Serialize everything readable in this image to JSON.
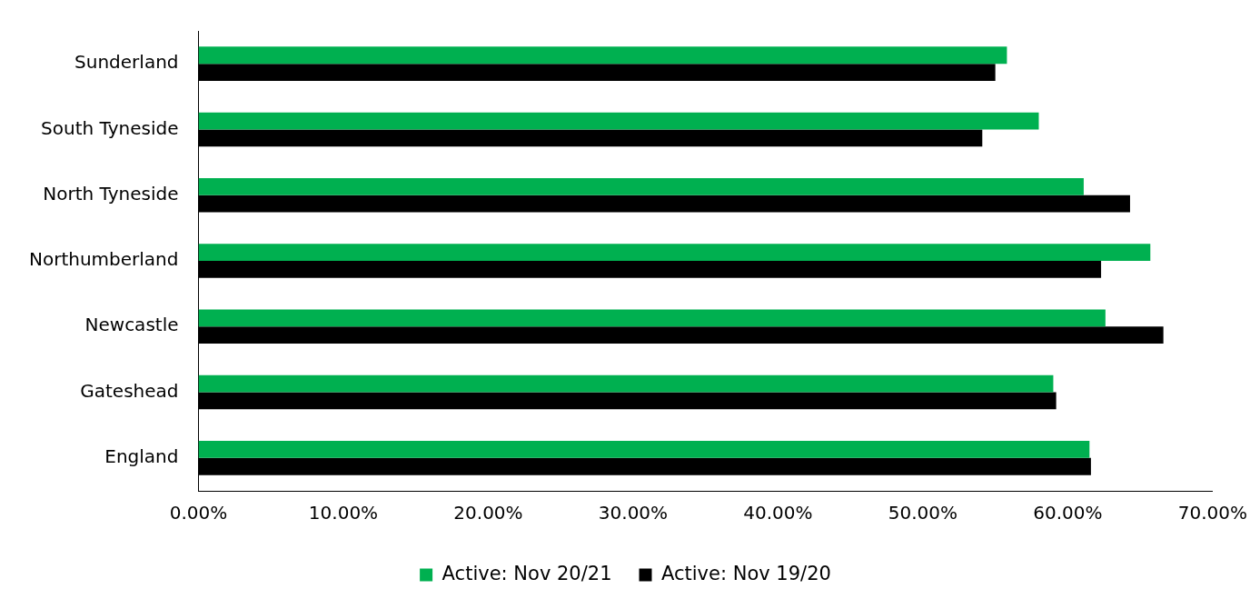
{
  "chart_data": {
    "type": "bar",
    "orientation": "horizontal",
    "categories": [
      "Sunderland",
      "South Tyneside",
      "North Tyneside",
      "Northumberland",
      "Newcastle",
      "Gateshead",
      "England"
    ],
    "series": [
      {
        "name": "Active: Nov 20/21",
        "color": "#00b050",
        "values": [
          55.8,
          58.0,
          61.1,
          65.7,
          62.6,
          59.0,
          61.5
        ]
      },
      {
        "name": "Active: Nov 19/20",
        "color": "#000000",
        "values": [
          55.0,
          54.1,
          64.3,
          62.3,
          66.6,
          59.2,
          61.6
        ]
      }
    ],
    "xlim": [
      0,
      70
    ],
    "xticks": [
      {
        "value": 0,
        "label": "0.00%"
      },
      {
        "value": 10,
        "label": "10.00%"
      },
      {
        "value": 20,
        "label": "20.00%"
      },
      {
        "value": 30,
        "label": "30.00%"
      },
      {
        "value": 40,
        "label": "40.00%"
      },
      {
        "value": 50,
        "label": "50.00%"
      },
      {
        "value": 60,
        "label": "60.00%"
      },
      {
        "value": 70,
        "label": "70.00%"
      }
    ],
    "grid": false,
    "legend": "bottom"
  }
}
